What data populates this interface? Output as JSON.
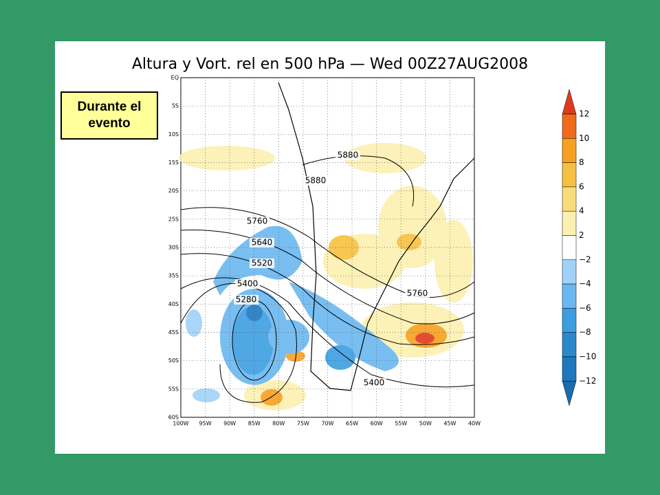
{
  "title": "Altura y Vort. rel en 500 hPa — Wed 00Z27AUG2008",
  "label": "Durante el evento",
  "lat_labels": [
    "EQ",
    "5S",
    "10S",
    "15S",
    "20S",
    "25S",
    "30S",
    "35S",
    "40S",
    "45S",
    "50S",
    "55S",
    "60S"
  ],
  "lon_labels": [
    "100W",
    "95W",
    "90W",
    "85W",
    "80W",
    "75W",
    "70W",
    "65W",
    "60W",
    "55W",
    "50W",
    "45W",
    "40W"
  ],
  "contour_labels": [
    "5880",
    "5880",
    "5760",
    "5640",
    "5520",
    "5400",
    "5280",
    "5760",
    "5400"
  ],
  "colorbar_labels": [
    "12",
    "10",
    "8",
    "6",
    "4",
    "2",
    "−2",
    "−4",
    "−6",
    "−8",
    "−10",
    "−12"
  ]
}
